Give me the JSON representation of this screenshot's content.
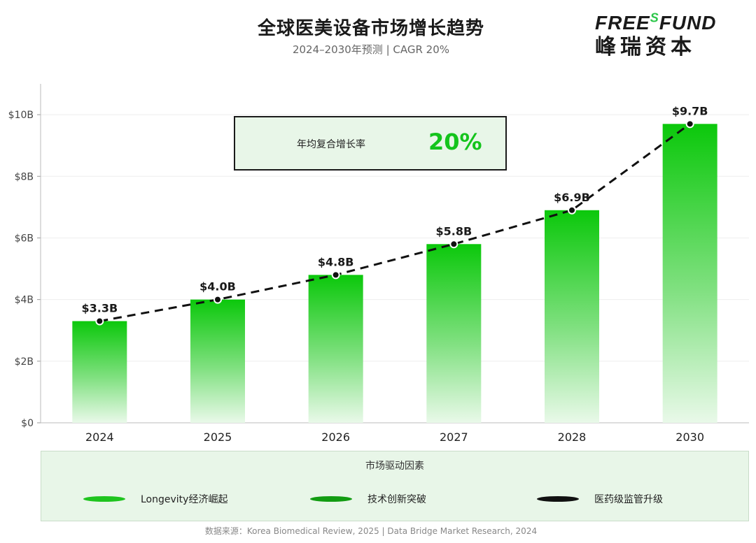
{
  "header": {
    "title": "全球医美设备市场增长趋势",
    "subtitle": "2024–2030年预测 | CAGR 20%"
  },
  "logo": {
    "en_main": "FREE",
    "en_super": "S",
    "en_tail": "FUND",
    "cn": "峰瑞资本"
  },
  "callout": {
    "label": "年均复合增长率",
    "value": "20%"
  },
  "chart_data": {
    "type": "bar",
    "categories": [
      "2024",
      "2025",
      "2026",
      "2027",
      "2028",
      "2030"
    ],
    "values": [
      3.3,
      4.0,
      4.8,
      5.8,
      6.9,
      9.7
    ],
    "value_labels": [
      "$3.3B",
      "$4.0B",
      "$4.8B",
      "$5.8B",
      "$6.9B",
      "$9.7B"
    ],
    "unit": "billion USD",
    "ylim": [
      0,
      11
    ],
    "yticks": [
      0,
      2,
      4,
      6,
      8,
      10
    ],
    "ytick_labels": [
      "$0",
      "$2B",
      "$4B",
      "$6B",
      "$8B",
      "$10B"
    ],
    "trend_line": "dashed",
    "colors": {
      "bar": "#0bc80b",
      "trend": "#111111"
    },
    "grid": "horizontal"
  },
  "drivers": {
    "title": "市场驱动因素",
    "items": [
      {
        "label": "Longevity经济崛起",
        "color": "#1ec41e"
      },
      {
        "label": "技术创新突破",
        "color": "#129c12"
      },
      {
        "label": "医药级监管升级",
        "color": "#111111"
      }
    ]
  },
  "source": "数据来源：Korea Biomedical Review, 2025 | Data Bridge Market Research, 2024"
}
